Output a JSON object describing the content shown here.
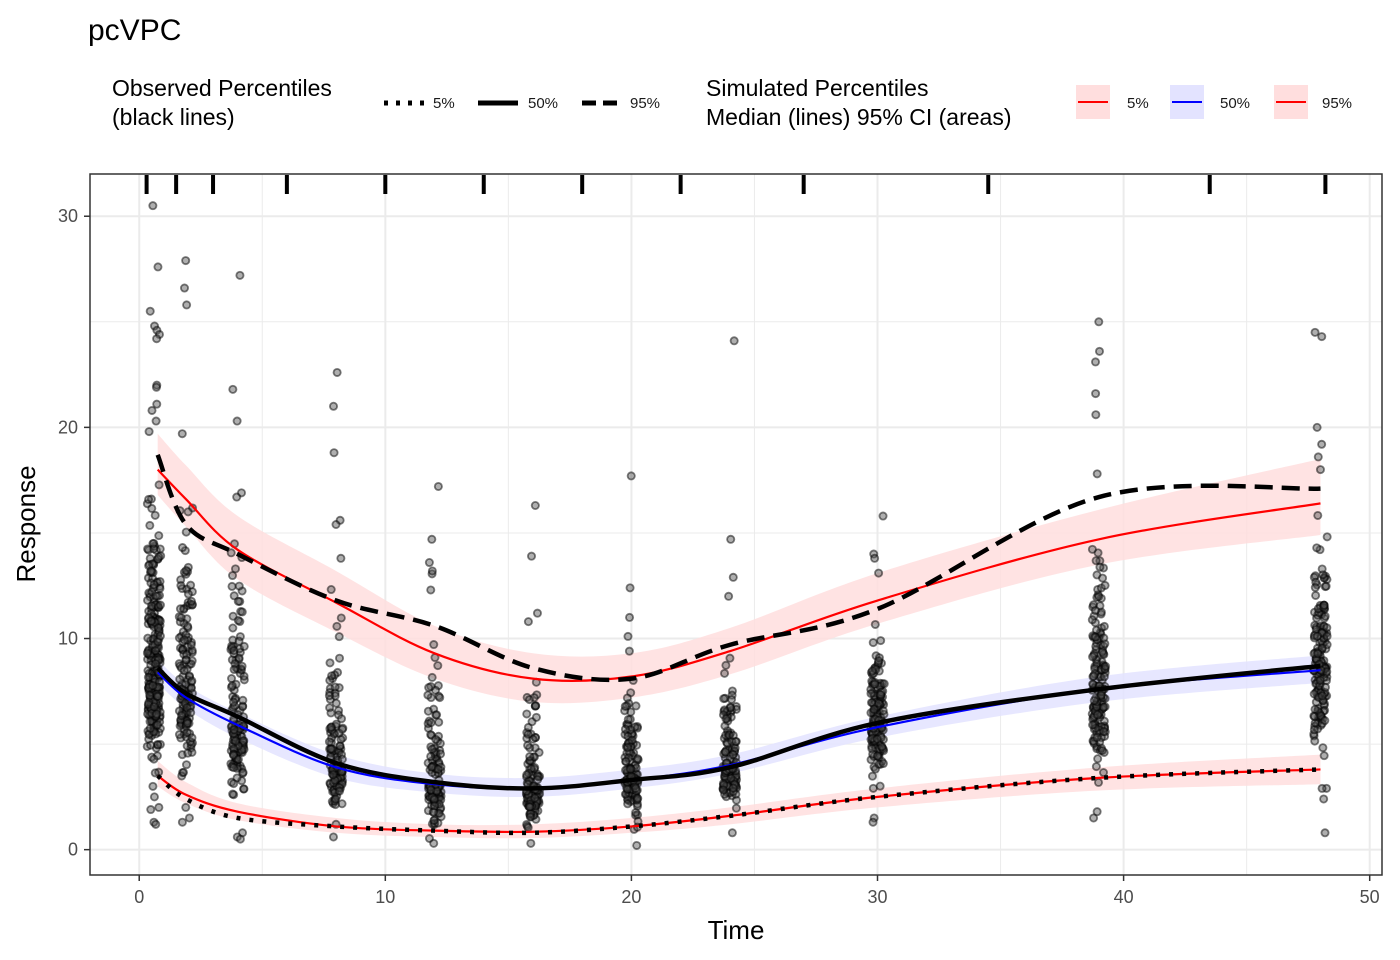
{
  "chart_data": {
    "type": "line",
    "title": "pcVPC",
    "xlabel": "Time",
    "ylabel": "Response",
    "xlim": [
      -2,
      50.5
    ],
    "ylim": [
      -1.2,
      32
    ],
    "xticks": [
      0,
      10,
      20,
      30,
      40,
      50
    ],
    "yticks": [
      0,
      10,
      20,
      30
    ],
    "grid": true,
    "legend_position": "top",
    "legend_observed": {
      "title_lines": [
        "Observed Percentiles",
        "(black lines)"
      ],
      "entries": [
        {
          "label": "5%",
          "linetype": "dotted"
        },
        {
          "label": "50%",
          "linetype": "solid"
        },
        {
          "label": "95%",
          "linetype": "dashed"
        }
      ]
    },
    "legend_simulated": {
      "title_lines": [
        "Simulated Percentiles",
        "Median (lines) 95% CI (areas)"
      ],
      "entries": [
        {
          "label": "5%",
          "line_color": "#ff0000",
          "fill_color": "#ffdede"
        },
        {
          "label": "50%",
          "line_color": "#0000ff",
          "fill_color": "#e3e3ff"
        },
        {
          "label": "95%",
          "line_color": "#ff0000",
          "fill_color": "#ffdede"
        }
      ]
    },
    "bin_boundaries": [
      0.3,
      1.5,
      3,
      6,
      10,
      14,
      18,
      22,
      27,
      34.5,
      43.5,
      48.2
    ],
    "simulated": {
      "x": [
        0.75,
        1.9,
        4,
        8,
        12,
        16,
        20,
        24,
        30,
        39,
        48
      ],
      "p5": {
        "median": [
          3.5,
          2.6,
          1.8,
          1.1,
          0.9,
          0.85,
          1.1,
          1.6,
          2.5,
          3.4,
          3.8
        ],
        "lower": [
          3.0,
          2.2,
          1.4,
          0.8,
          0.6,
          0.55,
          0.8,
          1.2,
          2.0,
          2.8,
          3.1
        ],
        "upper": [
          4.2,
          3.2,
          2.2,
          1.5,
          1.2,
          1.2,
          1.5,
          2.0,
          2.9,
          3.9,
          4.5
        ]
      },
      "p50": {
        "median": [
          8.4,
          7.2,
          5.9,
          3.9,
          3.1,
          2.9,
          3.3,
          4.0,
          5.8,
          7.6,
          8.5
        ],
        "lower": [
          7.9,
          6.7,
          5.3,
          3.4,
          2.7,
          2.5,
          2.9,
          3.6,
          5.3,
          7.0,
          7.9
        ],
        "upper": [
          9.0,
          7.8,
          6.5,
          4.5,
          3.6,
          3.4,
          3.8,
          4.5,
          6.3,
          8.2,
          9.2
        ]
      },
      "p95": {
        "median": [
          18.0,
          16.6,
          14.2,
          11.7,
          9.3,
          8.1,
          8.2,
          9.4,
          11.8,
          14.7,
          16.4
        ],
        "lower": [
          16.8,
          15.3,
          12.8,
          10.3,
          8.1,
          7.0,
          7.2,
          8.3,
          10.7,
          13.5,
          14.9
        ],
        "upper": [
          19.7,
          18.2,
          15.8,
          13.2,
          10.6,
          9.3,
          9.3,
          10.5,
          13.1,
          16.1,
          18.5
        ]
      }
    },
    "observed": {
      "x": [
        0.75,
        1.9,
        4,
        8,
        12,
        16,
        20,
        24,
        30,
        39,
        48
      ],
      "p5": [
        3.5,
        2.4,
        1.5,
        1.1,
        0.9,
        0.8,
        1.1,
        1.6,
        2.5,
        3.4,
        3.8
      ],
      "p50": [
        8.6,
        7.4,
        6.3,
        4.1,
        3.2,
        2.9,
        3.3,
        3.9,
        6.0,
        7.6,
        8.7
      ],
      "p95": [
        18.7,
        15.4,
        14.0,
        11.8,
        10.6,
        8.6,
        8.1,
        9.7,
        11.4,
        16.7,
        17.1
      ]
    },
    "points": {
      "fill_color": "#4d4d4d",
      "stroke_color": "#000000",
      "groups": [
        {
          "x": 0.6,
          "n": 300,
          "q05": 3.2,
          "q50": 8.5,
          "q95": 19.0,
          "outliers": [
            30.5,
            27.6,
            25.5,
            24.8,
            24.6,
            24.4,
            24.2,
            22.0,
            21.9,
            21.1,
            20.8,
            20.3,
            19.8,
            2.5,
            2.0,
            1.9,
            1.3,
            1.2
          ]
        },
        {
          "x": 1.9,
          "n": 150,
          "q05": 2.3,
          "q50": 7.3,
          "q95": 16.8,
          "outliers": [
            27.9,
            26.6,
            25.8,
            19.7,
            2.0,
            1.5,
            1.3
          ]
        },
        {
          "x": 4.0,
          "n": 140,
          "q05": 1.5,
          "q50": 6.0,
          "q95": 15.5,
          "outliers": [
            27.2,
            21.8,
            20.3,
            16.9,
            16.7,
            0.8,
            0.6,
            0.5
          ]
        },
        {
          "x": 8.0,
          "n": 130,
          "q05": 1.0,
          "q50": 4.0,
          "q95": 13.0,
          "outliers": [
            22.6,
            21.0,
            18.8,
            15.6,
            15.4,
            13.8,
            0.6
          ]
        },
        {
          "x": 12.0,
          "n": 130,
          "q05": 0.8,
          "q50": 3.1,
          "q95": 11.0,
          "outliers": [
            17.2,
            14.7,
            13.6,
            13.2,
            12.3,
            0.3
          ]
        },
        {
          "x": 16.0,
          "n": 130,
          "q05": 0.8,
          "q50": 2.9,
          "q95": 8.8,
          "outliers": [
            16.3,
            13.9,
            11.2,
            10.8,
            0.3
          ]
        },
        {
          "x": 20.0,
          "n": 130,
          "q05": 1.0,
          "q50": 3.3,
          "q95": 8.5,
          "outliers": [
            17.7,
            12.4,
            11.0,
            10.1,
            9.4,
            0.2
          ]
        },
        {
          "x": 24.0,
          "n": 130,
          "q05": 1.5,
          "q50": 4.0,
          "q95": 10.0,
          "outliers": [
            24.1,
            14.7,
            12.9,
            12.0,
            0.8
          ]
        },
        {
          "x": 30.0,
          "n": 140,
          "q05": 2.3,
          "q50": 6.0,
          "q95": 11.5,
          "outliers": [
            15.8,
            14.0,
            13.8,
            13.1,
            1.5,
            1.3
          ]
        },
        {
          "x": 39.0,
          "n": 160,
          "q05": 3.0,
          "q50": 7.6,
          "q95": 16.0,
          "outliers": [
            25.0,
            23.6,
            23.1,
            21.6,
            20.6,
            17.8,
            1.8,
            1.5
          ]
        },
        {
          "x": 48.0,
          "n": 170,
          "q05": 3.3,
          "q50": 8.7,
          "q95": 17.0,
          "outliers": [
            24.5,
            24.3,
            20.0,
            19.2,
            18.6,
            18.0,
            2.9,
            2.4,
            0.8
          ]
        }
      ]
    }
  }
}
